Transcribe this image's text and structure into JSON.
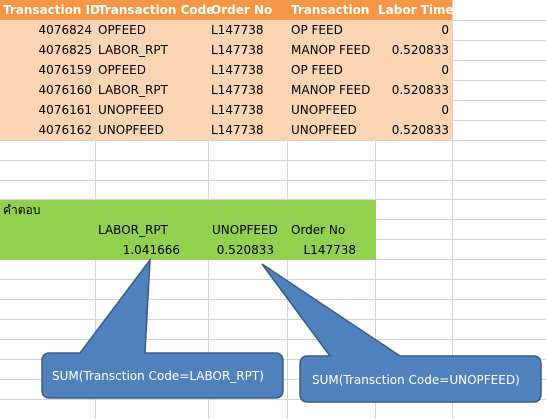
{
  "table": {
    "headers": [
      "Transaction ID",
      "Transaction Code",
      "Order No",
      "Transaction",
      "Labor Time"
    ],
    "rows": [
      [
        "4076824",
        "OPFEED",
        "L147738",
        "OP FEED",
        "0"
      ],
      [
        "4076825",
        "LABOR_RPT",
        "L147738",
        "MANOP FEED",
        "0.520833"
      ],
      [
        "4076159",
        "OPFEED",
        "L147738",
        "OP FEED",
        "0"
      ],
      [
        "4076160",
        "LABOR_RPT",
        "L147738",
        "MANOP FEED",
        "0.520833"
      ],
      [
        "4076161",
        "UNOPFEED",
        "L147738",
        "UNOPFEED",
        "0"
      ],
      [
        "4076162",
        "UNOPFEED",
        "L147738",
        "UNOPFEED",
        "0.520833"
      ]
    ]
  },
  "answer": {
    "label": "คำตอบ",
    "col1_header": "LABOR_RPT",
    "col2_header": "UNOPFEED",
    "col3_header": "Order No",
    "col1_value": "1.041666",
    "col2_value": "0.520833",
    "col3_value": "L147738"
  },
  "callouts": {
    "left": "SUM(Transction Code=LABOR_RPT)",
    "right": "SUM(Transction Code=UNOPFEED)"
  },
  "colors": {
    "header": "#f79646",
    "band": "#fbd4b4",
    "answer": "#92d050",
    "callout": "#4f81bd",
    "callout_border": "#385d8a"
  }
}
